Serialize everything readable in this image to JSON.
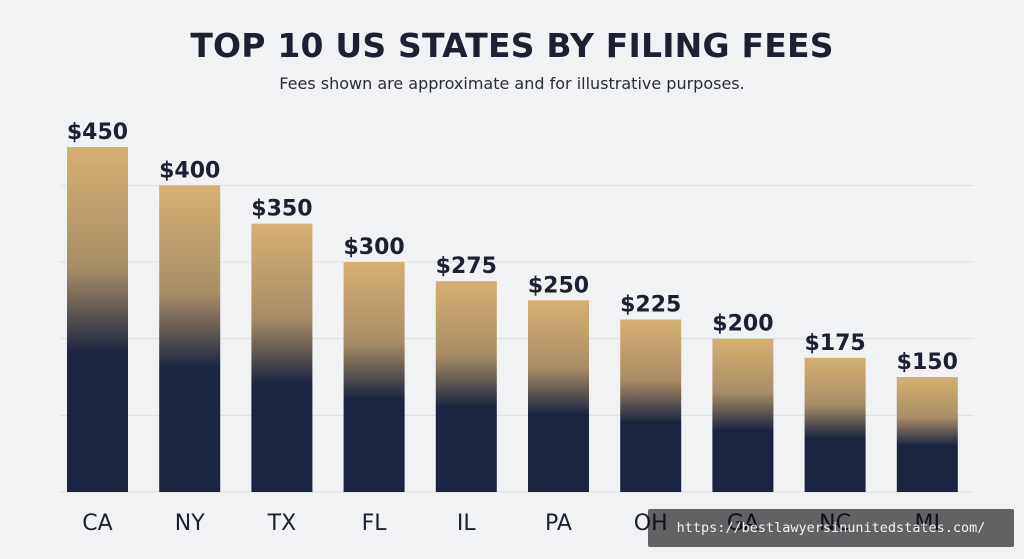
{
  "chart_data": {
    "type": "bar",
    "title": "TOP 10 US STATES BY FILING FEES",
    "subtitle": "Fees shown are approximate and for illustrative purposes.",
    "categories": [
      "CA",
      "NY",
      "TX",
      "FL",
      "IL",
      "PA",
      "OH",
      "GA",
      "NC",
      "MI"
    ],
    "values": [
      450,
      400,
      350,
      300,
      275,
      250,
      225,
      200,
      175,
      150
    ],
    "data_labels": [
      "$450",
      "$400",
      "$350",
      "$300",
      "$275",
      "$250",
      "$225",
      "$200",
      "$175",
      "$150"
    ],
    "ylim": [
      0,
      450
    ],
    "grid": true,
    "bar_colors": {
      "top": "#d7b071",
      "bottom": "#1a2440"
    },
    "text_color": "#1d2030",
    "grid_color": "#dcdde0"
  },
  "watermark": {
    "text": "https://bestlawyersinunitedstates.com/"
  }
}
